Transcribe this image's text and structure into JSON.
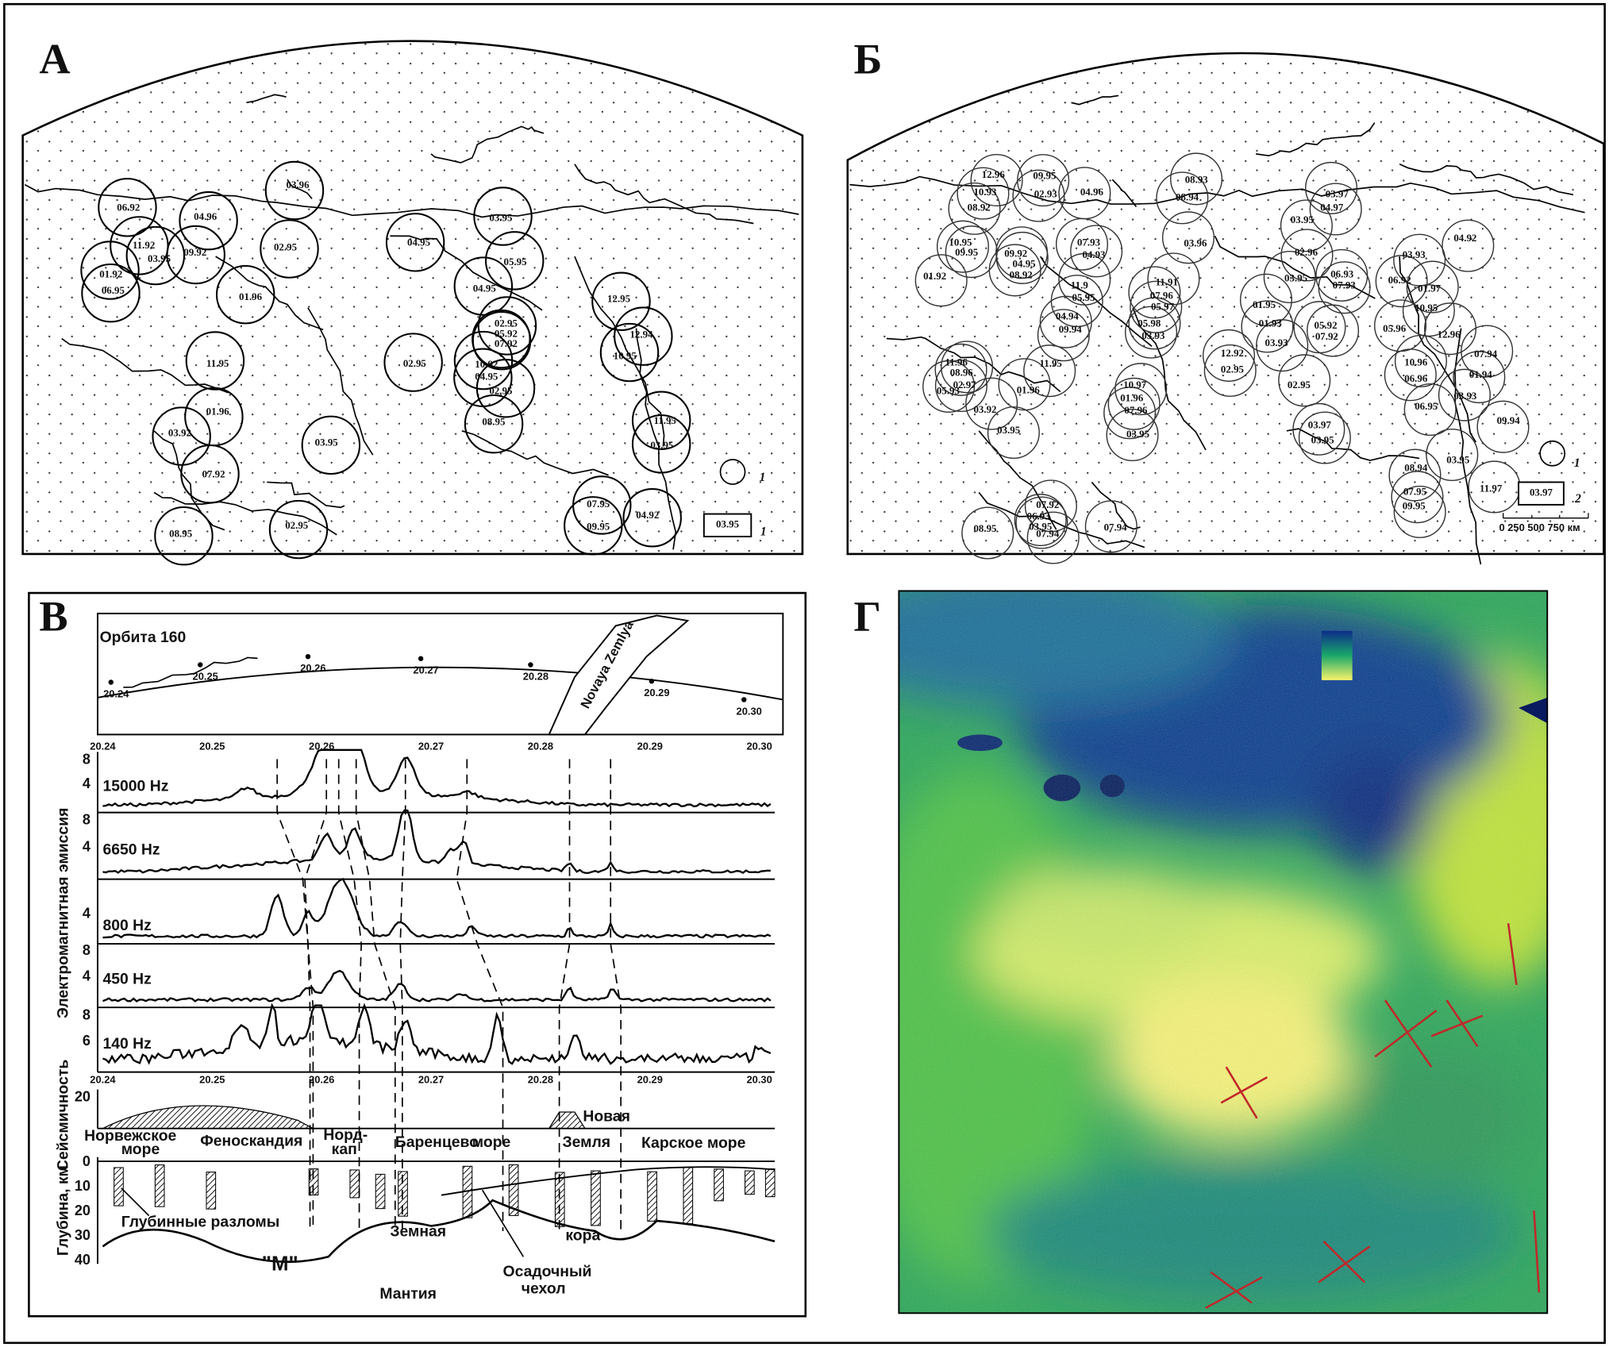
{
  "panels": {
    "a": {
      "label": "А",
      "map_labels": [
        "06.92",
        "04.96",
        "11.92",
        "09.92",
        "03.95",
        "01.92",
        "06.95",
        "03.96",
        "02.95",
        "04.95",
        "03.95",
        "05.95",
        "04.95",
        "01.96",
        "02.95",
        "05.92",
        "07.92",
        "12.95",
        "12.94",
        "10.95",
        "11.95",
        "02.95",
        "10.92",
        "04.95",
        "02.95",
        "08.95",
        "01.96",
        "03.92",
        "03.95",
        "11.95",
        "03.95",
        "07.92",
        "08.95",
        "02.95",
        "07.95",
        "09.95",
        "04.92"
      ],
      "legend_circle_key": "1",
      "legend_box": "03.95",
      "legend_box_key": "1"
    },
    "b": {
      "label": "Б",
      "map_labels": [
        "12.96",
        "09.95",
        "10.93",
        "02.93",
        "04.96",
        "08.93",
        "08.94",
        "08.92",
        "03.97",
        "04.97",
        "03.95",
        "10.95",
        "09.95",
        "09.92",
        "04.95",
        "08.92",
        "07.93",
        "04.93",
        "03.96",
        "04.92",
        "03.93",
        "01.92",
        "02.96",
        "03.95",
        "06.93",
        "07.93",
        "06.92",
        "01.97",
        "11.9",
        "05.95",
        "11.91",
        "07.96",
        "05.97",
        "10.95",
        "04.94",
        "09.94",
        "05.98",
        "03.93",
        "01.95",
        "01.93",
        "05.92",
        "07.92",
        "05.96",
        "12.96",
        "03.93",
        "12.92",
        "02.95",
        "11.95",
        "11.96",
        "08.96",
        "02.97",
        "05.93",
        "07.94",
        "01.94",
        "10.96",
        "06.96",
        "01.96",
        "10.97",
        "01.96",
        "07.96",
        "02.95",
        "03.93",
        "06.95",
        "03.92",
        "09.94",
        "03.95",
        "03.95",
        "03.97",
        "03.95",
        "03.95",
        "08.94",
        "07.95",
        "09.95",
        "11.97",
        "08.95",
        "07.92",
        "06.93",
        "03.95",
        "07.94",
        "07.94"
      ],
      "legend_circle_key": "1",
      "legend_box": "03.97",
      "legend_box_key": "2",
      "scale_bar": "0  250 500 750 км"
    },
    "v": {
      "label": "В",
      "orbit_title": "Орбита 160",
      "orbit_times": [
        "20.24",
        "20.25",
        "20.26",
        "20.27",
        "20.28",
        "20.29",
        "20.30"
      ],
      "island": "Novaya Zemlya",
      "emission_axis": "Электромагнитная эмиссия",
      "seismicity_axis": "Сейсмичность",
      "depth_axis": "Глубина, км",
      "frequencies": [
        "15000 Hz",
        "6650 Hz",
        "800 Hz",
        "450 Hz",
        "140 Hz"
      ],
      "emission_ticks": [
        [
          "8",
          "4"
        ],
        [
          "8",
          "4"
        ],
        [
          "4"
        ],
        [
          "8",
          "4"
        ],
        [
          "8",
          "6"
        ]
      ],
      "seismicity_tick": "20",
      "depth_ticks": [
        "0",
        "10",
        "20",
        "30",
        "40"
      ],
      "regions": [
        "Норвежское",
        "море",
        "Феноскандия",
        "Норд-",
        "кап",
        "Баренцево",
        "море",
        "Новая",
        "Земля",
        "Карское море"
      ],
      "notes": [
        "Глубинные разломы",
        "Земная",
        "кора",
        "Осадочный",
        "чехол",
        "\"М\"",
        "Мантия"
      ]
    },
    "g": {
      "label": "Г"
    }
  }
}
